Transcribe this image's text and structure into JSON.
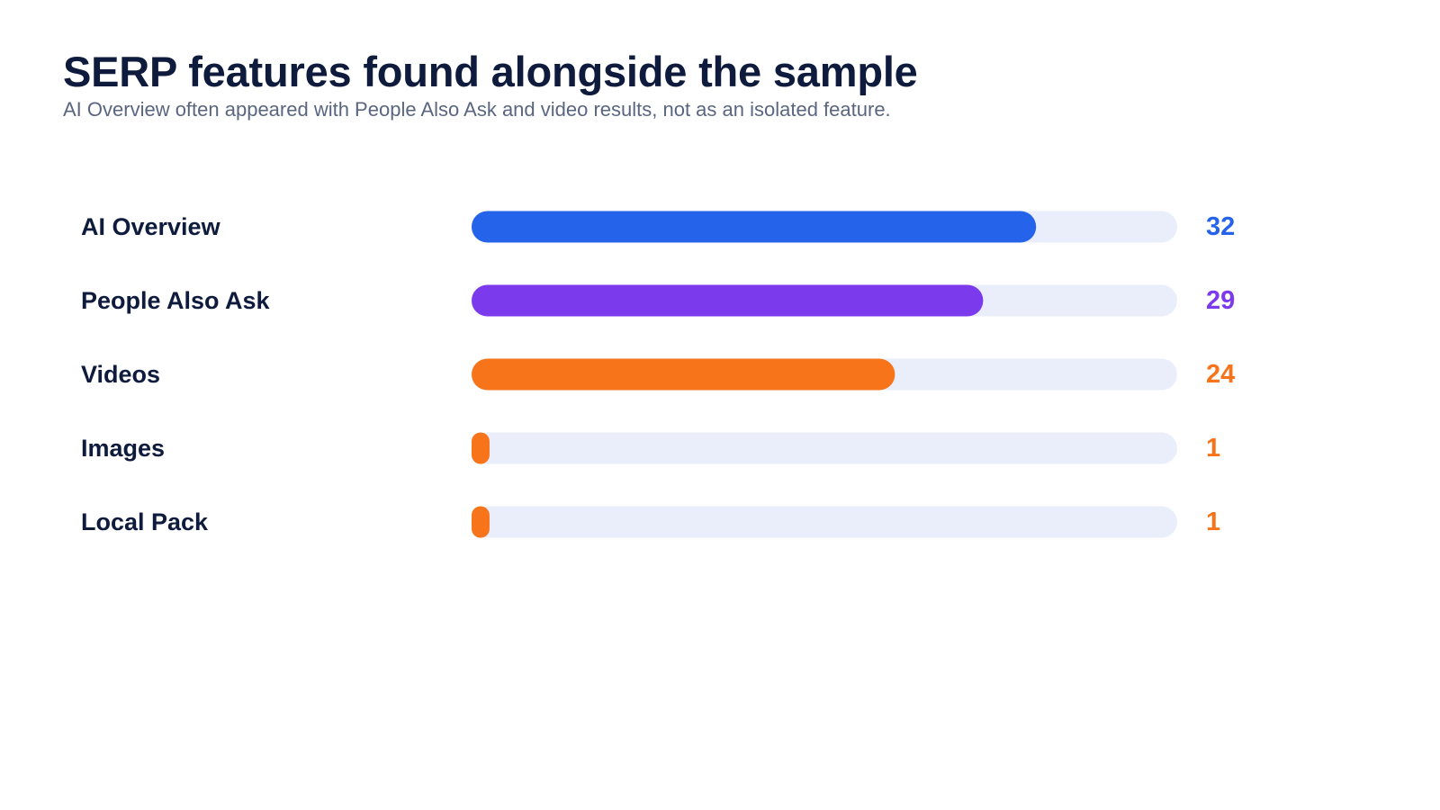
{
  "header": {
    "title": "SERP features found alongside the sample",
    "subtitle": "AI Overview often appeared with People Also Ask and video results, not as an isolated feature."
  },
  "colors": {
    "track": "#e9eefa",
    "blue": "#2563eb",
    "purple": "#7c3aed",
    "orange": "#f7741a"
  },
  "chart_data": {
    "type": "bar",
    "orientation": "horizontal",
    "title": "SERP features found alongside the sample",
    "subtitle": "AI Overview often appeared with People Also Ask and video results, not as an isolated feature.",
    "categories": [
      "AI Overview",
      "People Also Ask",
      "Videos",
      "Images",
      "Local Pack"
    ],
    "values": [
      32,
      29,
      24,
      1,
      1
    ],
    "value_labels": [
      "32",
      "29",
      "24",
      "1",
      "1"
    ],
    "bar_colors": [
      "#2563eb",
      "#7c3aed",
      "#f7741a",
      "#f7741a",
      "#f7741a"
    ],
    "xlim": [
      0,
      40
    ],
    "grid": false,
    "legend": "none"
  }
}
